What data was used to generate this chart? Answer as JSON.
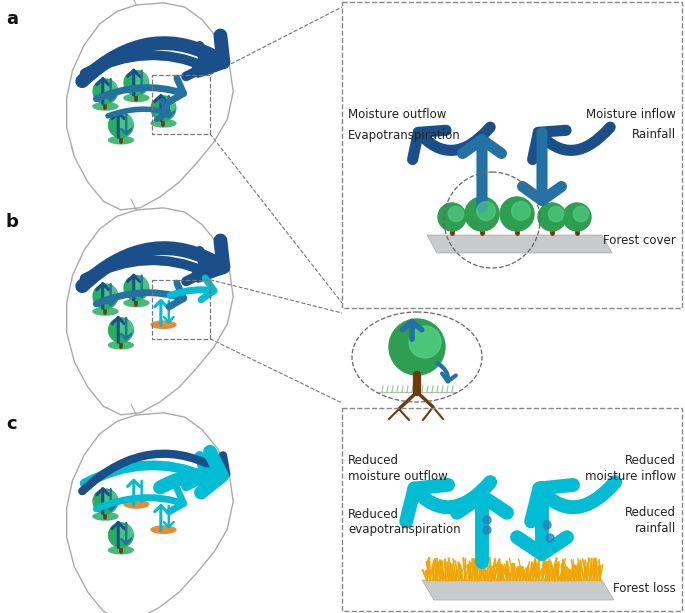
{
  "panel_labels": [
    "a",
    "b",
    "c"
  ],
  "right_top_labels": {
    "moisture_outflow": "Moisture outflow",
    "evapotranspiration": "Evapotranspiration",
    "moisture_inflow": "Moisture inflow",
    "rainfall": "Rainfall",
    "forest_cover": "Forest cover"
  },
  "right_bottom_labels": {
    "reduced_moisture_outflow": "Reduced\nmoisture outflow",
    "reduced_evapotranspiration": "Reduced\nevapotranspiration",
    "reduced_moisture_inflow": "Reduced\nmoisture inflow",
    "reduced_rainfall": "Reduced\nrainfall",
    "forest_loss": "Forest loss"
  },
  "colors": {
    "dark_blue": "#1a4f8a",
    "medium_blue": "#2471a3",
    "light_blue": "#5dade2",
    "cyan": "#00bcd4",
    "light_cyan": "#26c6da",
    "green_dark": "#27ae60",
    "green_light": "#58d68d",
    "orange": "#e67e22",
    "orange_light": "#f0a500",
    "brown": "#6e3b0a",
    "gray_light": "#cacfd2",
    "map_outline": "#aaaaaa",
    "background": "#ffffff",
    "arrow_blue_dark": "#1a4f8a",
    "arrow_blue_mid": "#2471a3",
    "arrow_cyan": "#00c8d7"
  },
  "figure_size": [
    6.85,
    6.13
  ],
  "dpi": 100
}
